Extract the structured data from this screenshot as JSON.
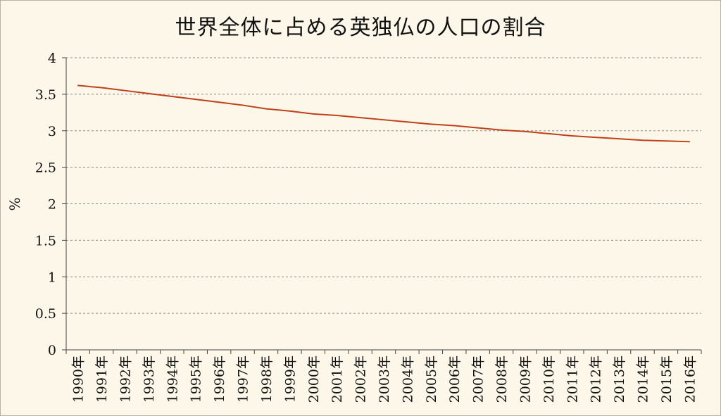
{
  "chart_data": {
    "type": "line",
    "title": "世界全体に占める英独仏の人口の割合",
    "xlabel": "",
    "ylabel": "%",
    "ylim": [
      0,
      4
    ],
    "yticks": [
      "0",
      "0.5",
      "1",
      "1.5",
      "2",
      "2.5",
      "3",
      "3.5",
      "4"
    ],
    "grid": true,
    "legend": "none",
    "categories": [
      "1990年",
      "1991年",
      "1992年",
      "1993年",
      "1994年",
      "1995年",
      "1996年",
      "1997年",
      "1998年",
      "1999年",
      "2000年",
      "2001年",
      "2002年",
      "2003年",
      "2004年",
      "2005年",
      "2006年",
      "2007年",
      "2008年",
      "2009年",
      "2010年",
      "2011年",
      "2012年",
      "2013年",
      "2014年",
      "2015年",
      "2016年"
    ],
    "series": [
      {
        "values": [
          3.62,
          3.59,
          3.55,
          3.51,
          3.47,
          3.43,
          3.39,
          3.35,
          3.3,
          3.27,
          3.23,
          3.21,
          3.18,
          3.15,
          3.12,
          3.09,
          3.07,
          3.04,
          3.01,
          2.99,
          2.96,
          2.93,
          2.91,
          2.89,
          2.87,
          2.86,
          2.85
        ],
        "color": "#c0401a"
      }
    ],
    "colors": {
      "line": "#c0401a",
      "grid": "#8a8a8a",
      "axis": "#444444",
      "text": "#111111"
    }
  }
}
